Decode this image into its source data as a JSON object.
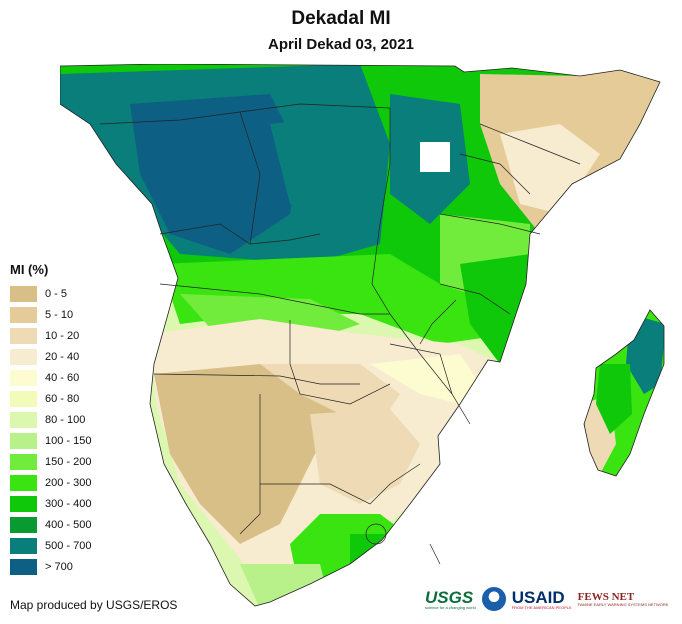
{
  "title": "Dekadal MI",
  "subtitle": "April Dekad 03, 2021",
  "legend": {
    "title": "MI (%)",
    "items": [
      {
        "label": "0 - 5",
        "color": "#d8bf88"
      },
      {
        "label": "5 - 10",
        "color": "#e4cb98"
      },
      {
        "label": "10 - 20",
        "color": "#eedab4"
      },
      {
        "label": "20 - 40",
        "color": "#f7ebd0"
      },
      {
        "label": "40 - 60",
        "color": "#fcfcd0"
      },
      {
        "label": "60 - 80",
        "color": "#f2fbb8"
      },
      {
        "label": "80 - 100",
        "color": "#dcf8b0"
      },
      {
        "label": "100 - 150",
        "color": "#b8f08a"
      },
      {
        "label": "150 - 200",
        "color": "#72ec3c"
      },
      {
        "label": "200 - 300",
        "color": "#3ae410"
      },
      {
        "label": "300 - 400",
        "color": "#10c80a"
      },
      {
        "label": "400 - 500",
        "color": "#0a9a32"
      },
      {
        "label": "500 - 700",
        "color": "#0a7e7a"
      },
      {
        "label": "> 700",
        "color": "#0e5f84"
      }
    ]
  },
  "credit": "Map produced by USGS/EROS",
  "logos": {
    "usgs": "USGS",
    "usgs_tagline": "science for a changing world",
    "usaid": "USAID",
    "usaid_tagline": "FROM THE AMERICAN PEOPLE",
    "fews": "FEWS NET",
    "fews_tagline": "FAMINE EARLY WARNING SYSTEMS NETWORK"
  }
}
